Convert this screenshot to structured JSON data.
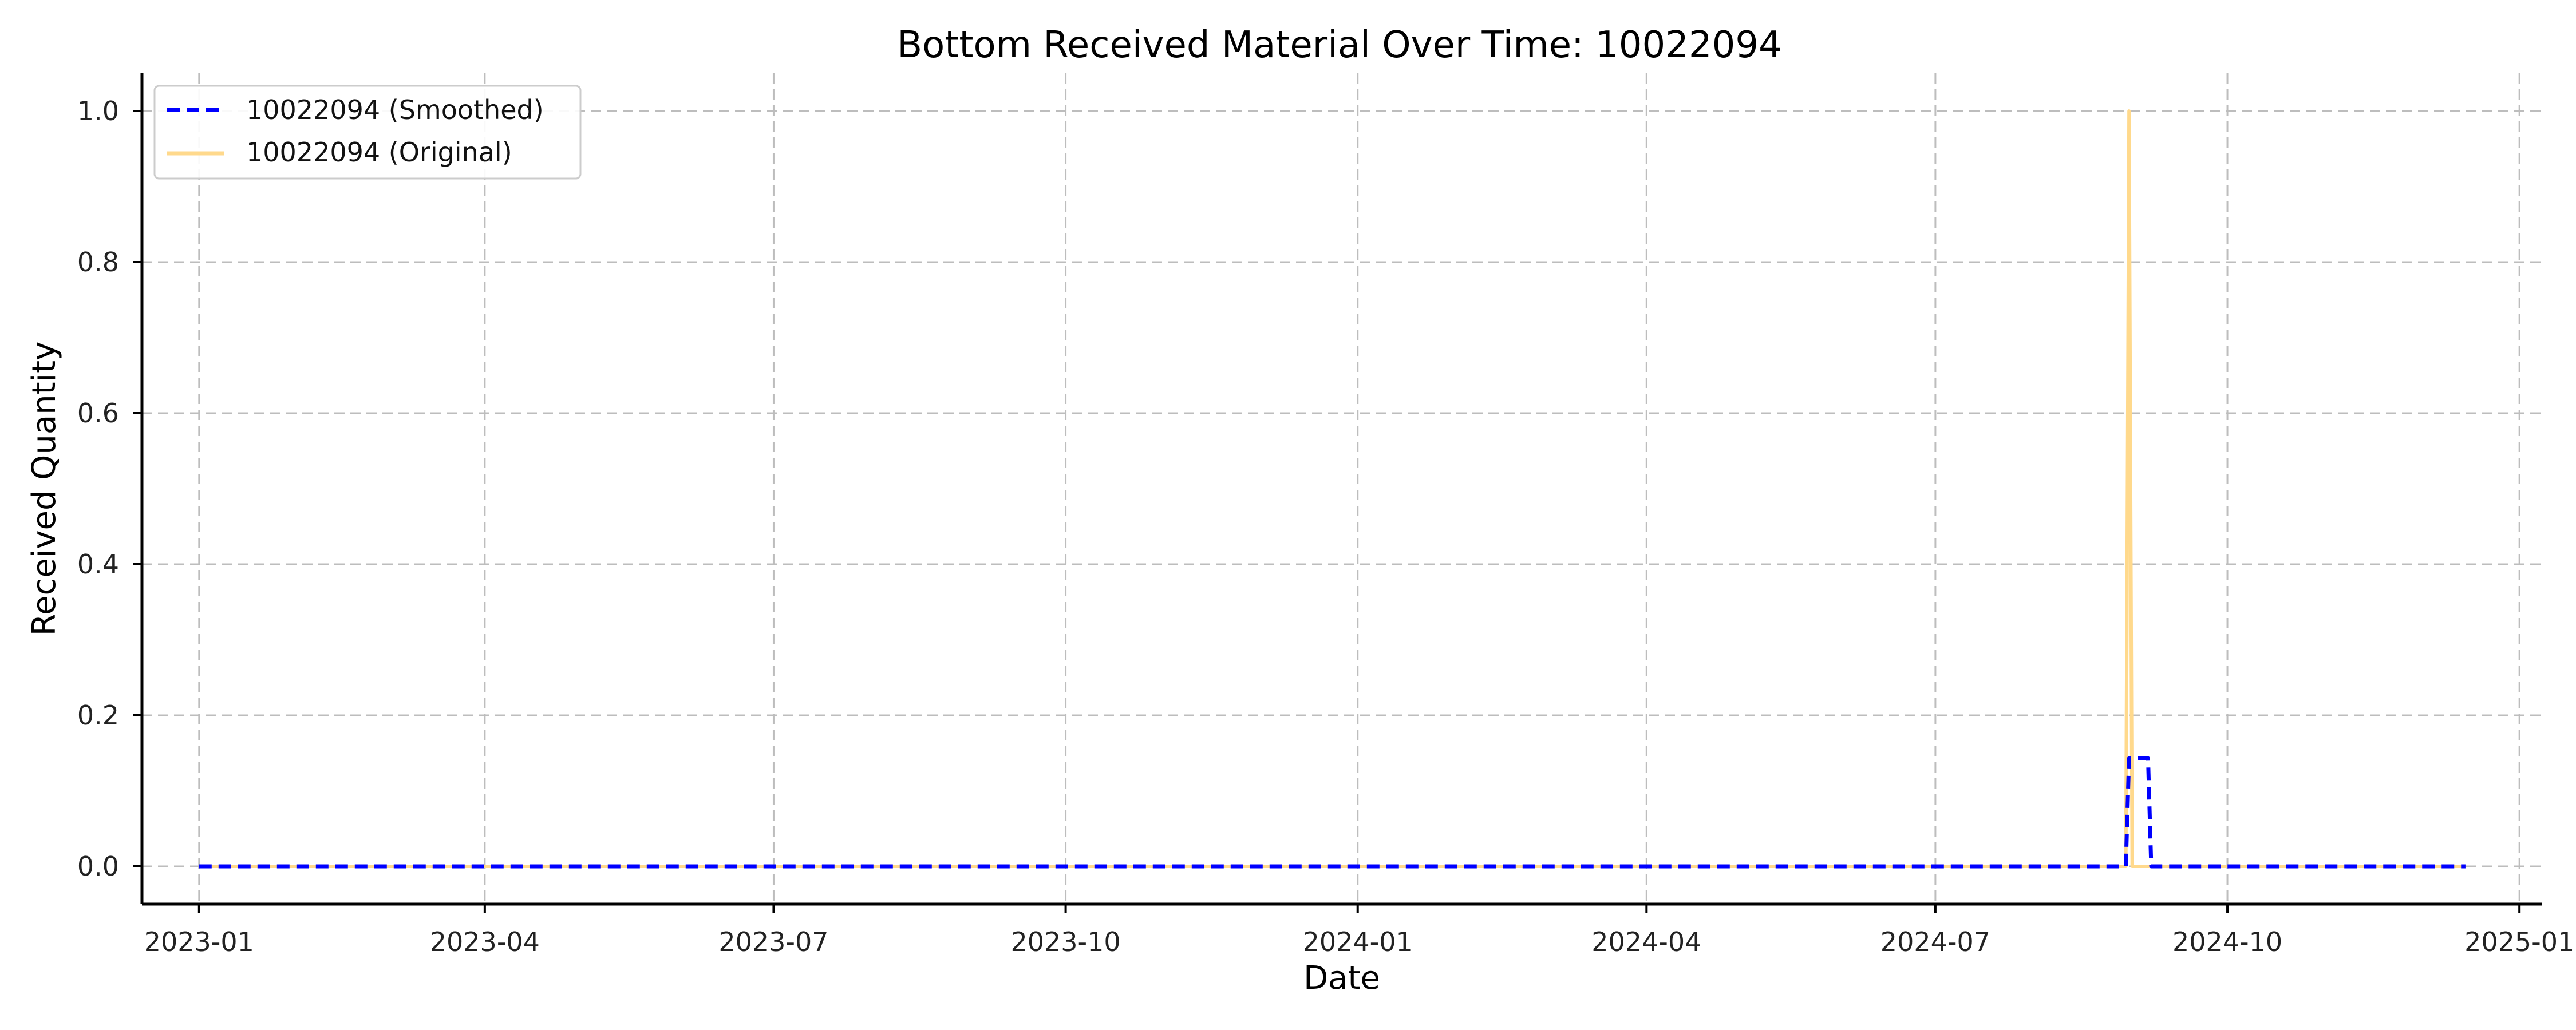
{
  "chart_data": {
    "type": "line",
    "title": "Bottom Received Material Over Time: 10022094",
    "xlabel": "Date",
    "ylabel": "Received Quantity",
    "x_ticks": [
      "2023-01",
      "2023-04",
      "2023-07",
      "2023-10",
      "2024-01",
      "2024-04",
      "2024-07",
      "2024-10",
      "2025-01"
    ],
    "x_tick_dates": [
      "2023-01-01",
      "2023-04-01",
      "2023-07-01",
      "2023-10-01",
      "2024-01-01",
      "2024-04-01",
      "2024-07-01",
      "2024-10-01",
      "2025-01-01"
    ],
    "y_ticks": [
      "0.0",
      "0.2",
      "0.4",
      "0.6",
      "0.8",
      "1.0"
    ],
    "y_tick_values": [
      0.0,
      0.2,
      0.4,
      0.6,
      0.8,
      1.0
    ],
    "xlim": [
      "2022-12-14",
      "2025-01-08"
    ],
    "ylim": [
      -0.05,
      1.05
    ],
    "grid": true,
    "legend_position": "top-left",
    "series": [
      {
        "name": "10022094 (Smoothed)",
        "color": "#0000ff",
        "style": "dashed",
        "points": [
          [
            "2023-01-01",
            0
          ],
          [
            "2024-08-30",
            0
          ],
          [
            "2024-08-31",
            0.143
          ],
          [
            "2024-09-06",
            0.143
          ],
          [
            "2024-09-07",
            0
          ],
          [
            "2024-12-15",
            0
          ]
        ]
      },
      {
        "name": "10022094 (Original)",
        "color": "#ffd98c",
        "style": "solid",
        "points": [
          [
            "2023-01-01",
            0
          ],
          [
            "2024-08-30",
            0
          ],
          [
            "2024-08-31",
            1.0
          ],
          [
            "2024-09-01",
            0
          ],
          [
            "2024-12-15",
            0
          ]
        ]
      }
    ]
  }
}
